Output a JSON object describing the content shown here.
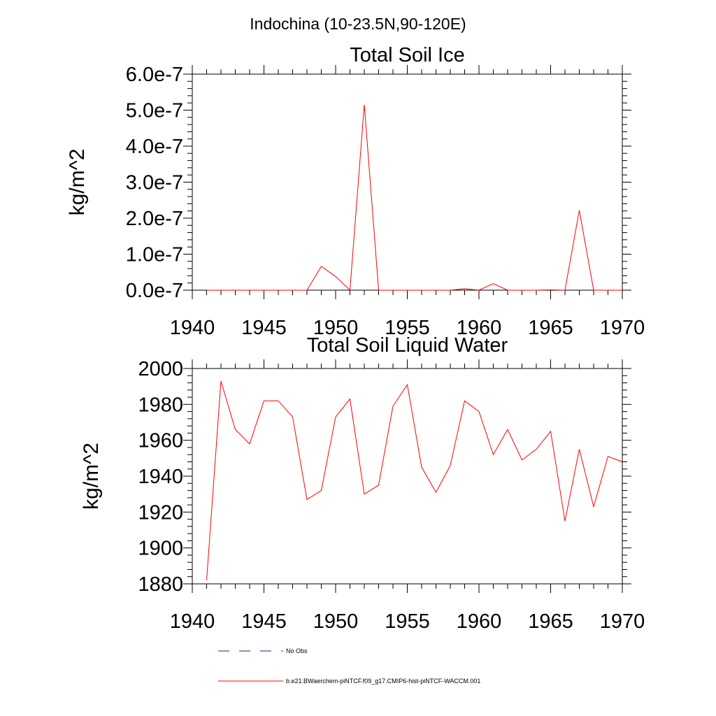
{
  "figure_title": "Indochina (10-23.5N,90-120E)",
  "colors": {
    "model": "#ff0000",
    "obs": "#1a237e",
    "axis": "#000000"
  },
  "legend": {
    "obs_label": "No Obs",
    "model_label": "b.e21.BWaerchem-piNTCF.f09_g17.CMIP6-hist-piNTCF-WACCM.001"
  },
  "chart_data": [
    {
      "type": "line",
      "title": "Total Soil Ice",
      "ylabel": "kg/m^2",
      "xlabel": "",
      "xlim": [
        1940,
        1970
      ],
      "ylim": [
        0,
        6e-07
      ],
      "xticks": [
        1940,
        1945,
        1950,
        1955,
        1960,
        1965,
        1970
      ],
      "xtick_labels": [
        "1940",
        "1945",
        "1950",
        "1955",
        "1960",
        "1965",
        "1970"
      ],
      "yticks": [
        0,
        1e-07,
        2e-07,
        3e-07,
        4e-07,
        5e-07,
        6e-07
      ],
      "ytick_labels": [
        "0.0e-7",
        "1.0e-7",
        "2.0e-7",
        "3.0e-7",
        "4.0e-7",
        "5.0e-7",
        "6.0e-7"
      ],
      "grid": false,
      "series": [
        {
          "x": [
            1941,
            1942,
            1943,
            1944,
            1945,
            1946,
            1947,
            1948,
            1949,
            1950,
            1951,
            1952,
            1953,
            1954,
            1955,
            1956,
            1957,
            1958,
            1959,
            1960,
            1961,
            1962,
            1963,
            1964,
            1965,
            1966,
            1967,
            1968,
            1969,
            1970
          ],
          "values": [
            0,
            0,
            0,
            0,
            0,
            0,
            0,
            0,
            6.6e-08,
            3.8e-08,
            0,
            5.15e-07,
            0,
            0,
            0,
            0,
            0,
            0,
            4e-09,
            0,
            1.8e-08,
            0,
            0,
            0,
            1e-09,
            0,
            2.22e-07,
            0,
            0,
            0
          ]
        }
      ]
    },
    {
      "type": "line",
      "title": "Total Soil Liquid Water",
      "ylabel": "kg/m^2",
      "xlabel": "",
      "xlim": [
        1940,
        1970
      ],
      "ylim": [
        1880,
        2000
      ],
      "xticks": [
        1940,
        1945,
        1950,
        1955,
        1960,
        1965,
        1970
      ],
      "xtick_labels": [
        "1940",
        "1945",
        "1950",
        "1955",
        "1960",
        "1965",
        "1970"
      ],
      "yticks": [
        1880,
        1900,
        1920,
        1940,
        1960,
        1980,
        2000
      ],
      "ytick_labels": [
        "1880",
        "1900",
        "1920",
        "1940",
        "1960",
        "1980",
        "2000"
      ],
      "grid": false,
      "series": [
        {
          "x": [
            1941,
            1942,
            1943,
            1944,
            1945,
            1946,
            1947,
            1948,
            1949,
            1950,
            1951,
            1952,
            1953,
            1954,
            1955,
            1956,
            1957,
            1958,
            1959,
            1960,
            1961,
            1962,
            1963,
            1964,
            1965,
            1966,
            1967,
            1968,
            1969,
            1970
          ],
          "values": [
            1882,
            1993,
            1966,
            1958,
            1982,
            1982,
            1973,
            1927,
            1932,
            1973,
            1983,
            1930,
            1935,
            1979,
            1991,
            1945,
            1931,
            1946,
            1982,
            1976,
            1952,
            1966,
            1949,
            1955,
            1965,
            1915,
            1955,
            1923,
            1951,
            1948
          ]
        }
      ]
    }
  ]
}
